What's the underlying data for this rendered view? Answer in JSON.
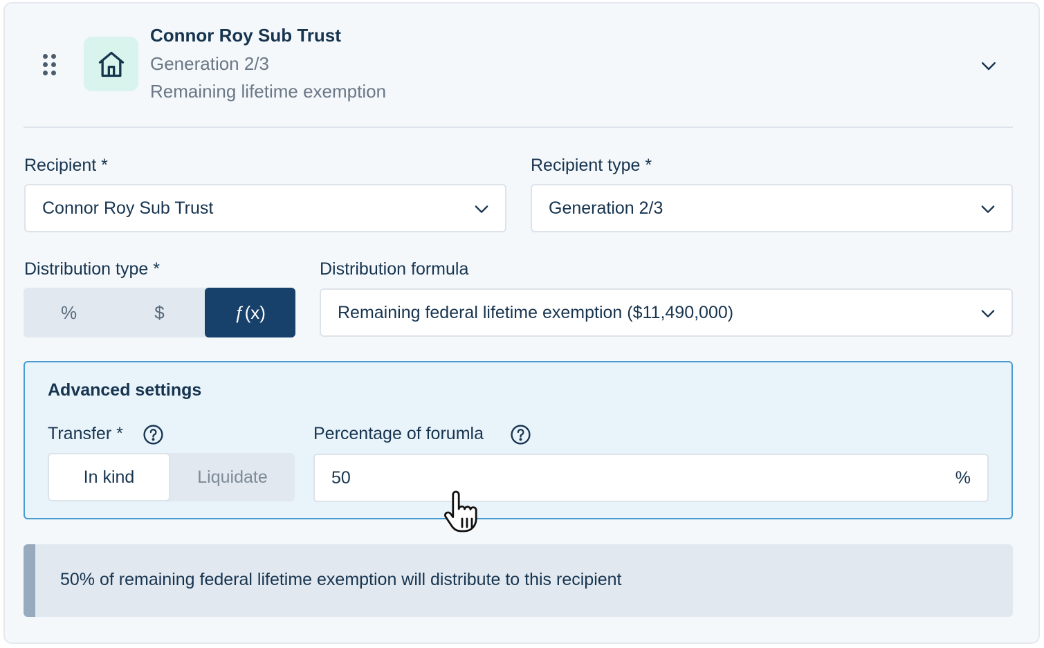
{
  "header": {
    "title": "Connor Roy Sub Trust",
    "subtitle": "Generation 2/3",
    "caption": "Remaining lifetime exemption",
    "icon": "house-icon",
    "accent": "#d8f4ec"
  },
  "recipient": {
    "label": "Recipient *",
    "value": "Connor Roy Sub Trust"
  },
  "recipient_type": {
    "label": "Recipient type *",
    "value": "Generation 2/3"
  },
  "distribution_type": {
    "label": "Distribution type *",
    "options": [
      "%",
      "$",
      "ƒ(x)"
    ],
    "selected": "ƒ(x)"
  },
  "distribution_formula": {
    "label": "Distribution formula",
    "value": "Remaining federal lifetime exemption ($11,490,000)"
  },
  "advanced": {
    "title": "Advanced settings",
    "transfer": {
      "label": "Transfer *",
      "options": [
        "In kind",
        "Liquidate"
      ],
      "selected": "In kind"
    },
    "percentage": {
      "label": "Percentage of forumla",
      "value": "50",
      "unit": "%"
    }
  },
  "banner": {
    "text": "50% of remaining federal lifetime exemption will distribute to this recipient"
  },
  "colors": {
    "primary": "#17416a",
    "text": "#17344f",
    "muted": "#6b7785",
    "focus_border": "#4a9cd0",
    "panel": "#e9f3fa"
  }
}
